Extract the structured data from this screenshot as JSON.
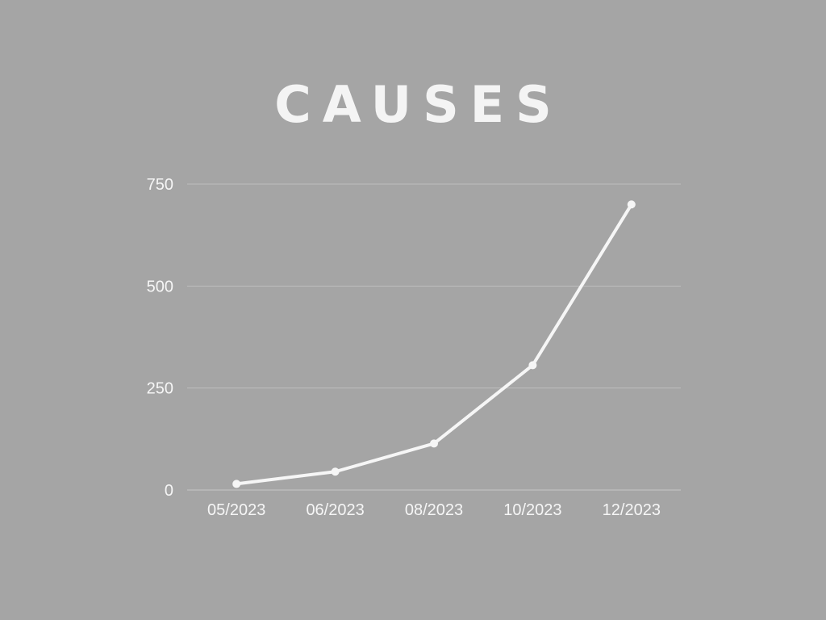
{
  "chart_data": {
    "type": "line",
    "title": "CAUSES",
    "xlabel": "",
    "ylabel": "",
    "categories": [
      "05/2023",
      "06/2023",
      "08/2023",
      "10/2023",
      "12/2023"
    ],
    "series": [
      {
        "values": [
          15,
          45,
          114,
          306,
          700
        ]
      }
    ],
    "ylim": [
      0,
      750
    ],
    "yticks": [
      0,
      250,
      500,
      750
    ],
    "grid": true,
    "legend": "none",
    "colors": {
      "background": "#a5a5a5",
      "line": "#f6f6f6",
      "grid": "#bdbdbd",
      "text": "#f6f6f6"
    }
  }
}
